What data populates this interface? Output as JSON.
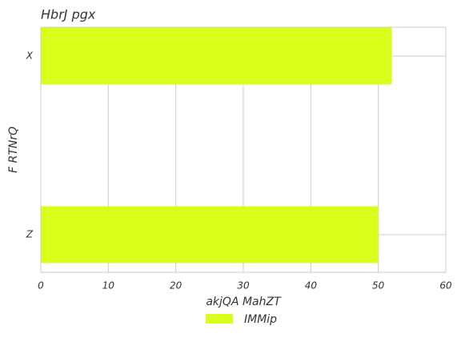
{
  "chart_data": {
    "type": "barh",
    "title": "HbrJ pgx",
    "xlabel": "akjQA MahZT",
    "ylabel": "F RTNrQ",
    "categories": [
      "X",
      "Z"
    ],
    "series": [
      {
        "name": "IMMip",
        "color": "#d7ff1a",
        "values": [
          52,
          50
        ]
      }
    ],
    "xlim": [
      0,
      60
    ],
    "xticks": [
      0,
      10,
      20,
      30,
      40,
      50,
      60
    ],
    "grid": true,
    "legend": "lower center"
  }
}
